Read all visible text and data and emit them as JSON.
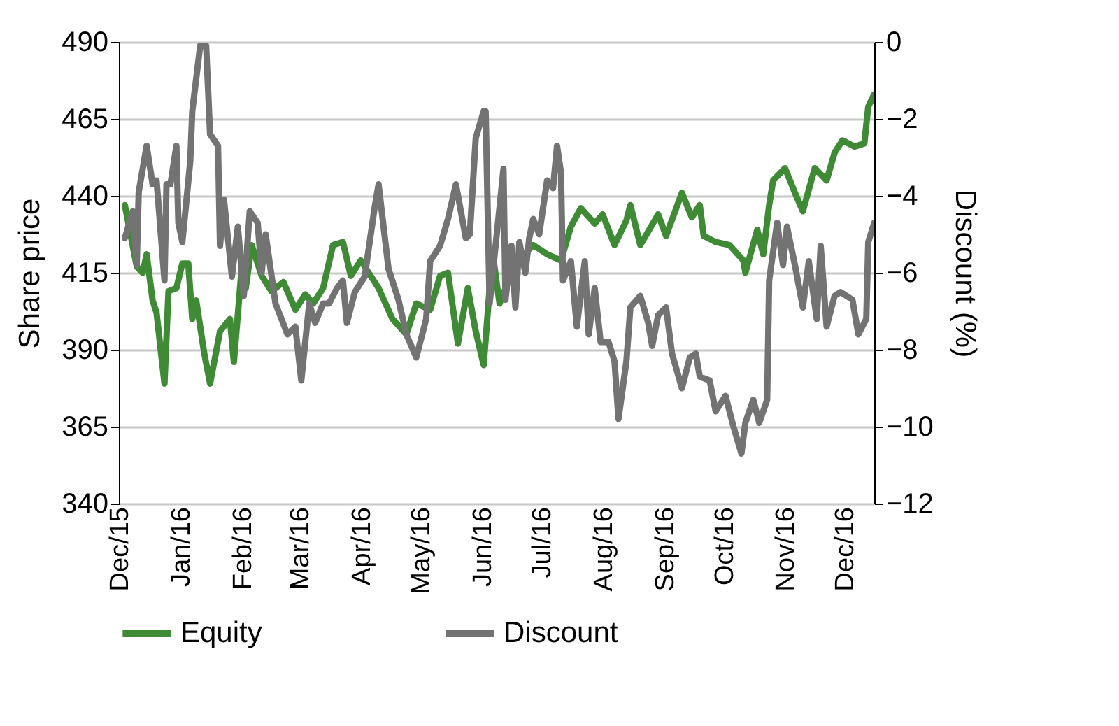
{
  "chart_data": {
    "type": "line",
    "ylabel": "Share price",
    "y2label": "Discount (%)",
    "xlim": [
      "2015-12-01",
      "2016-12-16"
    ],
    "xticks": [
      {
        "value": "2015-12-01",
        "label": "Dec/15"
      },
      {
        "value": "2016-01-01",
        "label": "Jan/16"
      },
      {
        "value": "2016-02-01",
        "label": "Feb/16"
      },
      {
        "value": "2016-03-01",
        "label": "Mar/16"
      },
      {
        "value": "2016-04-01",
        "label": "Apr/16"
      },
      {
        "value": "2016-05-01",
        "label": "May/16"
      },
      {
        "value": "2016-06-01",
        "label": "Jun/16"
      },
      {
        "value": "2016-07-01",
        "label": "Jul/16"
      },
      {
        "value": "2016-08-01",
        "label": "Aug/16"
      },
      {
        "value": "2016-09-01",
        "label": "Sep/16"
      },
      {
        "value": "2016-10-01",
        "label": "Oct/16"
      },
      {
        "value": "2016-11-01",
        "label": "Nov/16"
      },
      {
        "value": "2016-12-01",
        "label": "Dec/16"
      }
    ],
    "ylim": [
      340,
      490
    ],
    "yticks": [
      340,
      365,
      390,
      415,
      440,
      465,
      490
    ],
    "y2lim": [
      -12,
      0
    ],
    "y2ticks": [
      -12,
      -10,
      -8,
      -6,
      -4,
      -2,
      0
    ],
    "grid": "y",
    "legend": "bottom",
    "line_style": "solid",
    "marker": "none",
    "series": [
      {
        "name": "Equity",
        "color": "#3f8a35",
        "x": [
          "2015-12-04",
          "2015-12-10",
          "2015-12-13",
          "2015-12-15",
          "2015-12-18",
          "2015-12-20",
          "2015-12-24",
          "2015-12-26",
          "2015-12-30",
          "2016-01-02",
          "2016-01-05",
          "2016-01-07",
          "2016-01-09",
          "2016-01-13",
          "2016-01-16",
          "2016-01-21",
          "2016-01-26",
          "2016-01-28",
          "2016-02-01",
          "2016-02-03",
          "2016-02-06",
          "2016-02-11",
          "2016-02-16",
          "2016-02-22",
          "2016-02-28",
          "2016-03-04",
          "2016-03-08",
          "2016-03-13",
          "2016-03-18",
          "2016-03-23",
          "2016-03-27",
          "2016-04-01",
          "2016-04-06",
          "2016-04-10",
          "2016-04-17",
          "2016-04-24",
          "2016-04-29",
          "2016-05-06",
          "2016-05-11",
          "2016-05-15",
          "2016-05-20",
          "2016-05-25",
          "2016-05-29",
          "2016-06-02",
          "2016-06-05",
          "2016-06-07",
          "2016-06-10",
          "2016-06-18",
          "2016-06-27",
          "2016-07-04",
          "2016-07-11",
          "2016-07-16",
          "2016-07-21",
          "2016-07-28",
          "2016-08-01",
          "2016-08-07",
          "2016-08-13",
          "2016-08-15",
          "2016-08-20",
          "2016-08-29",
          "2016-09-02",
          "2016-09-10",
          "2016-09-15",
          "2016-09-19",
          "2016-09-21",
          "2016-09-27",
          "2016-10-04",
          "2016-10-11",
          "2016-10-12",
          "2016-10-18",
          "2016-10-21",
          "2016-10-24",
          "2016-10-26",
          "2016-11-01",
          "2016-11-06",
          "2016-11-10",
          "2016-11-16",
          "2016-11-22",
          "2016-11-26",
          "2016-11-30",
          "2016-12-06",
          "2016-12-11",
          "2016-12-13",
          "2016-12-16"
        ],
        "values": [
          437,
          417,
          415,
          421,
          406,
          402,
          379,
          409,
          410,
          418,
          418,
          400,
          406,
          389,
          379,
          396,
          400,
          386,
          417,
          410,
          424,
          414,
          409,
          412,
          403,
          408,
          405,
          410,
          424,
          425,
          414,
          419,
          414,
          410,
          400,
          395,
          405,
          403,
          414,
          415,
          392,
          410,
          396,
          385,
          410,
          419,
          405,
          418,
          424,
          421,
          419,
          430,
          436,
          431,
          434,
          424,
          432,
          437,
          424,
          434,
          427,
          441,
          433,
          437,
          427,
          425,
          424,
          419,
          415,
          429,
          421,
          437,
          445,
          449,
          441,
          435,
          449,
          445,
          454,
          458,
          456,
          457,
          469,
          473
        ]
      },
      {
        "name": "Discount",
        "color": "#737373",
        "axis": "y2",
        "x": [
          "2015-12-04",
          "2015-12-08",
          "2015-12-10",
          "2015-12-11",
          "2015-12-15",
          "2015-12-18",
          "2015-12-20",
          "2015-12-24",
          "2015-12-25",
          "2015-12-27",
          "2015-12-30",
          "2015-12-31",
          "2016-01-02",
          "2016-01-06",
          "2016-01-07",
          "2016-01-11",
          "2016-01-14",
          "2016-01-16",
          "2016-01-20",
          "2016-01-21",
          "2016-01-23",
          "2016-01-27",
          "2016-01-30",
          "2016-02-02",
          "2016-02-05",
          "2016-02-09",
          "2016-02-11",
          "2016-02-13",
          "2016-02-18",
          "2016-02-24",
          "2016-02-28",
          "2016-03-02",
          "2016-03-06",
          "2016-03-09",
          "2016-03-13",
          "2016-03-16",
          "2016-03-20",
          "2016-03-23",
          "2016-03-25",
          "2016-03-29",
          "2016-04-03",
          "2016-04-08",
          "2016-04-10",
          "2016-04-15",
          "2016-04-20",
          "2016-04-24",
          "2016-04-29",
          "2016-05-04",
          "2016-05-06",
          "2016-05-11",
          "2016-05-15",
          "2016-05-19",
          "2016-05-24",
          "2016-05-26",
          "2016-05-29",
          "2016-06-02",
          "2016-06-03",
          "2016-06-05",
          "2016-06-07",
          "2016-06-12",
          "2016-06-13",
          "2016-06-16",
          "2016-06-18",
          "2016-06-20",
          "2016-06-23",
          "2016-06-25",
          "2016-06-27",
          "2016-06-30",
          "2016-07-04",
          "2016-07-07",
          "2016-07-09",
          "2016-07-11",
          "2016-07-12",
          "2016-07-16",
          "2016-07-19",
          "2016-07-23",
          "2016-07-25",
          "2016-07-28",
          "2016-07-31",
          "2016-08-04",
          "2016-08-07",
          "2016-08-09",
          "2016-08-13",
          "2016-08-15",
          "2016-08-20",
          "2016-08-24",
          "2016-08-26",
          "2016-08-29",
          "2016-09-02",
          "2016-09-05",
          "2016-09-10",
          "2016-09-14",
          "2016-09-17",
          "2016-09-19",
          "2016-09-24",
          "2016-09-27",
          "2016-10-02",
          "2016-10-06",
          "2016-10-10",
          "2016-10-12",
          "2016-10-16",
          "2016-10-19",
          "2016-10-23",
          "2016-10-24",
          "2016-10-28",
          "2016-10-31",
          "2016-11-02",
          "2016-11-06",
          "2016-11-10",
          "2016-11-13",
          "2016-11-17",
          "2016-11-19",
          "2016-11-22",
          "2016-11-26",
          "2016-11-29",
          "2016-12-05",
          "2016-12-08",
          "2016-12-12",
          "2016-12-13",
          "2016-12-16"
        ],
        "values": [
          -5.1,
          -4.4,
          -5.8,
          -3.9,
          -2.7,
          -3.7,
          -3.6,
          -6.2,
          -3.7,
          -3.7,
          -2.7,
          -4.7,
          -5.2,
          -3.1,
          -1.8,
          -0.1,
          -0.1,
          -2.4,
          -2.7,
          -5.3,
          -4.1,
          -6.1,
          -4.8,
          -6.6,
          -4.4,
          -4.7,
          -6.0,
          -5.0,
          -6.8,
          -7.6,
          -7.4,
          -8.8,
          -6.8,
          -7.3,
          -6.8,
          -6.8,
          -6.4,
          -6.2,
          -7.3,
          -6.5,
          -6.1,
          -4.3,
          -3.7,
          -5.9,
          -6.7,
          -7.6,
          -8.2,
          -7.2,
          -5.7,
          -5.3,
          -4.6,
          -3.7,
          -5.1,
          -5.0,
          -2.5,
          -1.8,
          -1.8,
          -6.8,
          -5.8,
          -3.3,
          -6.7,
          -5.3,
          -6.9,
          -5.2,
          -6.0,
          -5.1,
          -4.6,
          -5.0,
          -3.6,
          -3.8,
          -2.7,
          -3.4,
          -6.2,
          -5.7,
          -7.4,
          -5.7,
          -7.6,
          -6.4,
          -7.8,
          -7.8,
          -8.3,
          -9.8,
          -8.3,
          -6.9,
          -6.6,
          -7.3,
          -7.9,
          -7.1,
          -6.9,
          -8.1,
          -9.0,
          -8.2,
          -8.1,
          -8.7,
          -8.8,
          -9.6,
          -9.2,
          -10.0,
          -10.7,
          -9.9,
          -9.3,
          -9.9,
          -9.3,
          -6.2,
          -4.7,
          -5.8,
          -4.8,
          -5.8,
          -6.9,
          -5.7,
          -7.2,
          -5.3,
          -7.4,
          -6.6,
          -6.5,
          -6.7,
          -7.6,
          -7.2,
          -5.2,
          -4.7
        ]
      }
    ]
  }
}
